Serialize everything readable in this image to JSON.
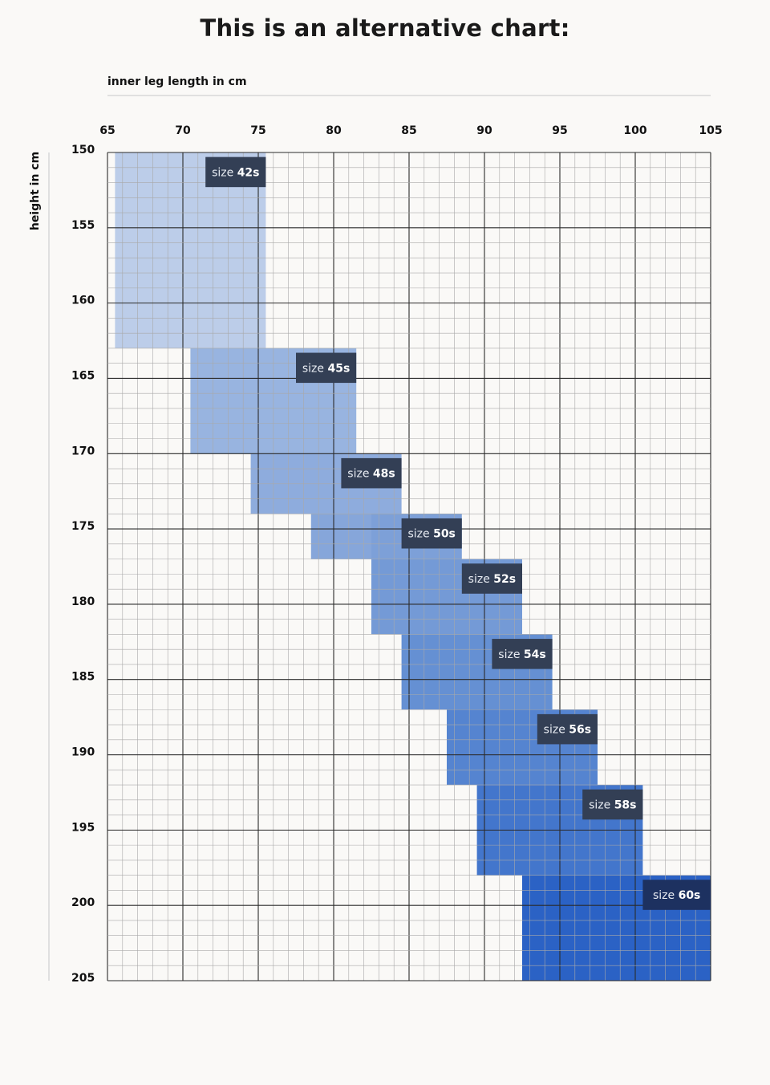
{
  "page": {
    "title": "This is an alternative chart:"
  },
  "chart_data": {
    "type": "heatmap",
    "title": "",
    "xlabel": "inner leg length in cm",
    "ylabel": "height in cm",
    "xlim": [
      65,
      105
    ],
    "ylim": [
      150,
      205
    ],
    "x_ticks": [
      65,
      70,
      75,
      80,
      85,
      90,
      95,
      100,
      105
    ],
    "y_ticks": [
      150,
      155,
      160,
      165,
      170,
      175,
      180,
      185,
      190,
      195,
      200,
      205
    ],
    "minor_grid_step": 1,
    "major_grid_step": 5,
    "grid": true,
    "y_axis_inverted": true,
    "regions": [
      {
        "label": "size ",
        "size": "42s",
        "x": [
          65.5,
          75.5
        ],
        "y": [
          150,
          163
        ],
        "color": "#bccde9"
      },
      {
        "label": "size ",
        "size": "45s",
        "x": [
          70.5,
          81.5
        ],
        "y": [
          163,
          170
        ],
        "color": "#98b4e0"
      },
      {
        "label": "size ",
        "size": "48s",
        "x": [
          74.5,
          84.5
        ],
        "y": [
          170,
          174
        ],
        "color": "#8eacdd"
      },
      {
        "label": "size ",
        "size": "50s",
        "x": [
          78.5,
          84.5
        ],
        "y": [
          174,
          177
        ],
        "color": "#86a6da"
      },
      {
        "label": "size ",
        "size": "50s",
        "x": [
          82.5,
          88.5
        ],
        "y": [
          174,
          177
        ],
        "color": "#7da0d8"
      },
      {
        "label": "size ",
        "size": "52s",
        "x": [
          82.5,
          92.5
        ],
        "y": [
          177,
          182
        ],
        "color": "#749ad6"
      },
      {
        "label": "size ",
        "size": "54s",
        "x": [
          84.5,
          94.5
        ],
        "y": [
          182,
          187
        ],
        "color": "#6590d3"
      },
      {
        "label": "size ",
        "size": "56s",
        "x": [
          87.5,
          97.5
        ],
        "y": [
          187,
          192
        ],
        "color": "#5584d0"
      },
      {
        "label": "size ",
        "size": "58s",
        "x": [
          89.5,
          100.5
        ],
        "y": [
          192,
          198
        ],
        "color": "#4376cc"
      },
      {
        "label": "size ",
        "size": "60s",
        "x": [
          92.5,
          105
        ],
        "y": [
          198,
          205
        ],
        "color": "#2b62c5"
      }
    ],
    "labels": [
      {
        "text": "size ",
        "num": "42s",
        "x": [
          71.5,
          75.5
        ],
        "y": [
          150.3,
          152.3
        ]
      },
      {
        "text": "size ",
        "num": "45s",
        "x": [
          77.5,
          81.5
        ],
        "y": [
          163.3,
          165.3
        ]
      },
      {
        "text": "size ",
        "num": "48s",
        "x": [
          80.5,
          84.5
        ],
        "y": [
          170.3,
          172.3
        ]
      },
      {
        "text": "size ",
        "num": "50s",
        "x": [
          84.5,
          88.5
        ],
        "y": [
          174.3,
          176.3
        ]
      },
      {
        "text": "size ",
        "num": "52s",
        "x": [
          88.5,
          92.5
        ],
        "y": [
          177.3,
          179.3
        ]
      },
      {
        "text": "size ",
        "num": "54s",
        "x": [
          90.5,
          94.5
        ],
        "y": [
          182.3,
          184.3
        ]
      },
      {
        "text": "size ",
        "num": "56s",
        "x": [
          93.5,
          97.5
        ],
        "y": [
          187.3,
          189.3
        ]
      },
      {
        "text": "size ",
        "num": "58s",
        "x": [
          96.5,
          100.5
        ],
        "y": [
          192.3,
          194.3
        ]
      },
      {
        "text": "size ",
        "num": "60s",
        "x": [
          100.5,
          105
        ],
        "y": [
          198.3,
          200.3
        ]
      }
    ],
    "colors": {
      "grid_minor": "#a9a9a9",
      "grid_major": "#2b2b2b",
      "label_bg": "#333f55",
      "label_bg_last": "#1d3160",
      "rule": "#d8d8d8"
    }
  }
}
